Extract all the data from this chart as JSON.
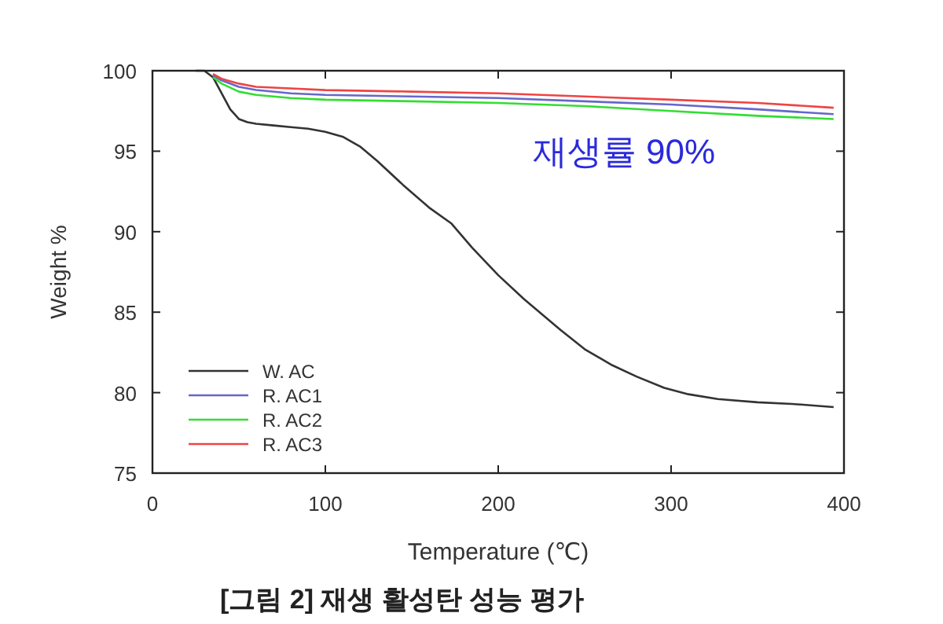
{
  "chart_data": {
    "type": "line",
    "title": "[그림 2] 재생 활성탄 성능 평가",
    "xlabel": "Temperature (℃)",
    "ylabel": "Weight %",
    "xlim": [
      0,
      400
    ],
    "ylim": [
      75,
      100
    ],
    "xticks": [
      0,
      100,
      200,
      300,
      400
    ],
    "yticks": [
      75,
      80,
      85,
      90,
      95,
      100
    ],
    "legend": "bottom left",
    "grid": false,
    "marker": "none",
    "line_style": "solid",
    "annotations": [
      "재생률 90%"
    ],
    "series": [
      {
        "name": "W. AC",
        "color": "#333333",
        "x": [
          25,
          30,
          35,
          40,
          45,
          50,
          55,
          60,
          70,
          80,
          90,
          100,
          110,
          120,
          130,
          145,
          160,
          173,
          185,
          200,
          215,
          236,
          250,
          266,
          280,
          296,
          310,
          327,
          350,
          370,
          394
        ],
        "values": [
          100,
          100,
          99.6,
          98.6,
          97.6,
          97,
          96.8,
          96.7,
          96.6,
          96.5,
          96.4,
          96.2,
          95.9,
          95.3,
          94.4,
          92.9,
          91.5,
          90.5,
          89,
          87.3,
          85.8,
          83.9,
          82.7,
          81.7,
          81,
          80.3,
          79.9,
          79.6,
          79.4,
          79.3,
          79.1
        ]
      },
      {
        "name": "R. AC1",
        "color": "#6666cc",
        "x": [
          35,
          40,
          50,
          60,
          80,
          100,
          150,
          200,
          250,
          300,
          350,
          394
        ],
        "values": [
          99.7,
          99.4,
          99,
          98.8,
          98.6,
          98.5,
          98.4,
          98.3,
          98.1,
          97.9,
          97.6,
          97.3
        ]
      },
      {
        "name": "R. AC2",
        "color": "#33dd33",
        "x": [
          35,
          40,
          50,
          60,
          80,
          100,
          150,
          200,
          250,
          300,
          350,
          394
        ],
        "values": [
          99.6,
          99.2,
          98.7,
          98.5,
          98.3,
          98.2,
          98.1,
          98,
          97.8,
          97.5,
          97.2,
          97
        ]
      },
      {
        "name": "R. AC3",
        "color": "#ee4444",
        "x": [
          35,
          40,
          50,
          60,
          80,
          100,
          150,
          200,
          250,
          300,
          350,
          394
        ],
        "values": [
          99.8,
          99.5,
          99.2,
          99,
          98.9,
          98.8,
          98.7,
          98.6,
          98.4,
          98.2,
          98,
          97.7
        ]
      }
    ]
  }
}
